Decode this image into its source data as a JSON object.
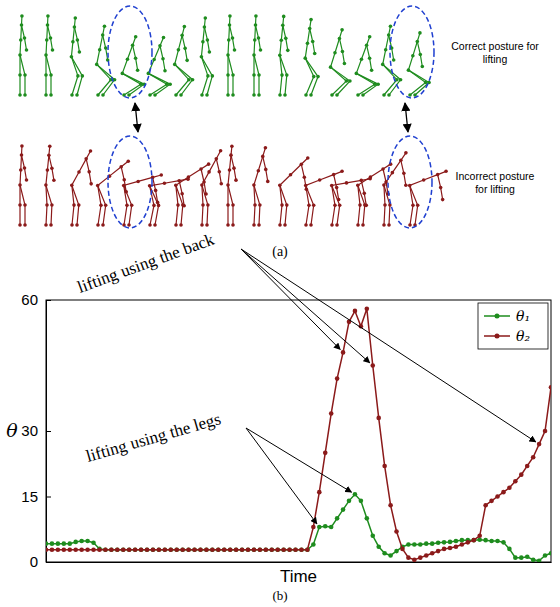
{
  "panel_a": {
    "label": "(a)",
    "rows": [
      {
        "text": "Correct posture for lifting"
      },
      {
        "text": "Incorrect posture for lifting"
      }
    ]
  },
  "panel_b_label": "(b)",
  "chart_data": {
    "type": "line",
    "x_label": "Time",
    "y_label": "θ",
    "x": [
      0,
      1,
      2,
      3,
      4,
      5,
      6,
      7,
      8,
      9,
      10,
      11,
      12,
      13,
      14,
      15,
      16,
      17,
      18,
      19,
      20,
      21,
      22,
      23,
      24,
      25,
      26,
      27,
      28,
      29,
      30,
      31,
      32,
      33,
      34,
      35,
      36,
      37,
      38,
      39,
      40,
      41,
      42,
      43,
      44,
      45,
      46,
      47,
      48,
      49,
      50,
      51,
      52,
      53,
      54,
      55,
      56,
      57,
      58,
      59,
      60,
      61,
      62,
      63,
      64,
      65,
      66,
      67,
      68,
      69,
      70,
      71,
      72,
      73,
      74,
      75,
      76,
      77,
      78,
      79,
      80,
      81,
      82,
      83,
      84,
      85
    ],
    "xlim": [
      0,
      85
    ],
    "ylim": [
      0,
      60
    ],
    "yticks": [
      0,
      15,
      30,
      60
    ],
    "tick_labels": "y",
    "grid": false,
    "legend": "upper right",
    "marker": "circle",
    "series": [
      {
        "name": "θ₁",
        "color": "#1e8c1e",
        "values": [
          4.2,
          4.2,
          4.2,
          4.2,
          4.2,
          4.6,
          4.8,
          4.8,
          4.4,
          3.0,
          2.8,
          2.8,
          2.8,
          2.8,
          2.8,
          2.8,
          2.8,
          2.8,
          2.8,
          2.8,
          2.8,
          2.8,
          2.8,
          2.8,
          2.8,
          2.8,
          2.8,
          2.8,
          2.8,
          2.8,
          2.8,
          2.8,
          2.8,
          2.8,
          2.8,
          2.8,
          2.8,
          2.8,
          2.8,
          2.8,
          2.8,
          2.8,
          2.8,
          2.8,
          2.8,
          4,
          8,
          8.2,
          8,
          10,
          12,
          14,
          15.5,
          14,
          10,
          6,
          3.5,
          2,
          1.5,
          2.5,
          3.5,
          4,
          4,
          4,
          4.2,
          4.2,
          4.4,
          4.5,
          4.6,
          4.8,
          5,
          5,
          5,
          5.1,
          5,
          4.8,
          4.8,
          4.5,
          3,
          1,
          1,
          1.2,
          0.5,
          0.3,
          1.5,
          2
        ]
      },
      {
        "name": "θ₂",
        "color": "#8b1a1a",
        "values": [
          2.8,
          2.8,
          2.8,
          2.8,
          2.8,
          2.8,
          2.8,
          2.8,
          2.8,
          2.8,
          2.8,
          2.8,
          2.8,
          2.8,
          2.8,
          2.8,
          2.8,
          2.8,
          2.8,
          2.8,
          2.8,
          2.8,
          2.8,
          2.8,
          2.8,
          2.8,
          2.8,
          2.8,
          2.8,
          2.8,
          2.8,
          2.8,
          2.8,
          2.8,
          2.8,
          2.8,
          2.8,
          2.8,
          2.8,
          2.8,
          2.8,
          2.8,
          2.8,
          2.8,
          2.8,
          8,
          16,
          25,
          34,
          42,
          48,
          55,
          57.5,
          54,
          58,
          45,
          33,
          22,
          13,
          7,
          3,
          1,
          0.5,
          1,
          1.5,
          2,
          2.5,
          3,
          3.2,
          3.5,
          4,
          4.5,
          5,
          6,
          13,
          14,
          15,
          16,
          17,
          18.5,
          20,
          22,
          24,
          27,
          30,
          40
        ]
      }
    ],
    "annotations": [
      {
        "text": "lifting using the back"
      },
      {
        "text": "lifting using the legs"
      }
    ]
  }
}
